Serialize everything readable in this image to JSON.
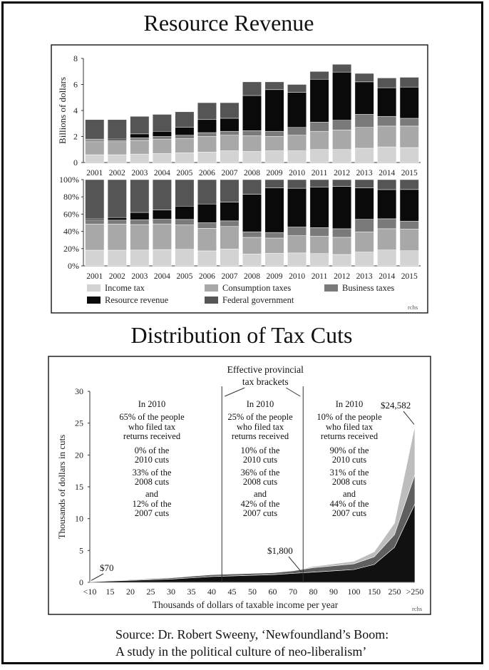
{
  "titles": {
    "top": "Resource Revenue",
    "bottom": "Distribution of Tax Cuts"
  },
  "source": {
    "line1": "Source: Dr. Robert Sweeny, ‘Newfoundland’s Boom:",
    "line2": "A study in the political culture of neo-liberalism’"
  },
  "chart_data": [
    {
      "type": "bar",
      "stacked": true,
      "title": "Resource Revenue",
      "xlabel": "",
      "ylabel": "Billions of dollars",
      "ylim": [
        0,
        8
      ],
      "yticks": [
        "0",
        "2",
        "4",
        "6",
        "8"
      ],
      "categories": [
        "2001",
        "2002",
        "2003",
        "2004",
        "2005",
        "2006",
        "2007",
        "2008",
        "2009",
        "2010",
        "2011",
        "2012",
        "2013",
        "2014",
        "2015"
      ],
      "series": [
        {
          "name": "Income tax",
          "color": "#d3d3d3",
          "values": [
            0.6,
            0.6,
            0.65,
            0.7,
            0.75,
            0.8,
            0.9,
            0.85,
            0.9,
            0.9,
            1.0,
            1.0,
            1.1,
            1.2,
            1.15
          ]
        },
        {
          "name": "Consumption taxes",
          "color": "#a8a8a8",
          "values": [
            1.0,
            1.0,
            1.05,
            1.1,
            1.1,
            1.2,
            1.2,
            1.2,
            1.1,
            1.2,
            1.4,
            1.5,
            1.6,
            1.6,
            1.65
          ]
        },
        {
          "name": "Business taxes",
          "color": "#7a7a7a",
          "values": [
            0.15,
            0.15,
            0.2,
            0.2,
            0.25,
            0.3,
            0.3,
            0.4,
            0.4,
            0.6,
            0.7,
            0.75,
            1.0,
            0.75,
            0.6
          ]
        },
        {
          "name": "Resource revenue",
          "color": "#0a0a0a",
          "values": [
            0.05,
            0.1,
            0.3,
            0.4,
            0.6,
            1.0,
            1.0,
            2.7,
            3.2,
            2.7,
            3.3,
            3.7,
            2.5,
            2.2,
            2.4
          ]
        },
        {
          "name": "Federal government",
          "color": "#555555",
          "values": [
            1.5,
            1.45,
            1.35,
            1.3,
            1.2,
            1.3,
            1.2,
            1.05,
            0.6,
            0.6,
            0.6,
            0.6,
            0.65,
            0.75,
            0.75
          ]
        }
      ],
      "credit": "rchs"
    },
    {
      "type": "bar",
      "stacked": true,
      "percent": true,
      "ylim": [
        0,
        100
      ],
      "yticks": [
        "0%",
        "20%",
        "40%",
        "60%",
        "80%",
        "100%"
      ],
      "categories": [
        "2001",
        "2002",
        "2003",
        "2004",
        "2005",
        "2006",
        "2007",
        "2008",
        "2009",
        "2010",
        "2011",
        "2012",
        "2013",
        "2014",
        "2015"
      ],
      "legend": [
        "Income tax",
        "Consumption taxes",
        "Business taxes",
        "Resource revenue",
        "Federal government"
      ],
      "legend_position": "bottom"
    },
    {
      "type": "area",
      "stacked": true,
      "title": "Distribution of Tax Cuts",
      "xlabel": "Thousands of dollars of taxable income per year",
      "ylabel": "Thousands of dollars in cuts",
      "ylim": [
        0,
        30
      ],
      "yticks": [
        "0",
        "5",
        "10",
        "15",
        "20",
        "25",
        "30"
      ],
      "x": [
        "<10",
        "15",
        "20",
        "25",
        "30",
        "35",
        "40",
        "45",
        "50",
        "60",
        "70",
        "80",
        "90",
        "100",
        "150",
        "250",
        ">250"
      ],
      "series": [
        {
          "name": "2007 cuts",
          "color": "#111111",
          "values": [
            0.07,
            0.2,
            0.3,
            0.4,
            0.5,
            0.7,
            0.9,
            1.0,
            1.1,
            1.2,
            1.4,
            1.6,
            1.8,
            2.0,
            2.8,
            5.5,
            12.3
          ]
        },
        {
          "name": "2008 cuts",
          "color": "#5f5f5f",
          "values": [
            0.0,
            0.05,
            0.1,
            0.15,
            0.2,
            0.25,
            0.3,
            0.3,
            0.3,
            0.3,
            0.4,
            0.7,
            0.8,
            0.9,
            1.2,
            2.0,
            4.6
          ]
        },
        {
          "name": "2010 cuts",
          "color": "#bdbdbd",
          "values": [
            0.0,
            0.0,
            0.0,
            0.0,
            0.0,
            0.0,
            0.0,
            0.0,
            0.0,
            0.0,
            0.0,
            0.2,
            0.3,
            0.4,
            0.8,
            1.8,
            7.7
          ]
        }
      ],
      "bracket_title": [
        "Effective provincial",
        "tax brackets"
      ],
      "brackets": [
        {
          "lines": [
            "In 2010",
            "65% of the people",
            "who filed tax",
            "returns received",
            "0% of the",
            "2010 cuts",
            "33% of the",
            "2008 cuts",
            "and",
            "12% of the",
            "2007 cuts"
          ]
        },
        {
          "lines": [
            "In 2010",
            "25% of the people",
            "who filed tax",
            "returns received",
            "10% of the",
            "2010 cuts",
            "36% of the",
            "2008 cuts",
            "and",
            "42% of the",
            "2007 cuts"
          ]
        },
        {
          "lines": [
            "In 2010",
            "10% of the people",
            "who filed tax",
            "returns received",
            "90% of the",
            "2010 cuts",
            "31% of the",
            "2008 cuts",
            "and",
            "44% of the",
            "2007 cuts"
          ]
        }
      ],
      "annotations": [
        {
          "text": "$70",
          "x": "<10",
          "y": 0.07
        },
        {
          "text": "$1,800",
          "x": "70",
          "y": 1.8
        },
        {
          "text": "$24,582",
          "x": ">250",
          "y": 24.582
        }
      ],
      "credit": "rchs"
    }
  ]
}
